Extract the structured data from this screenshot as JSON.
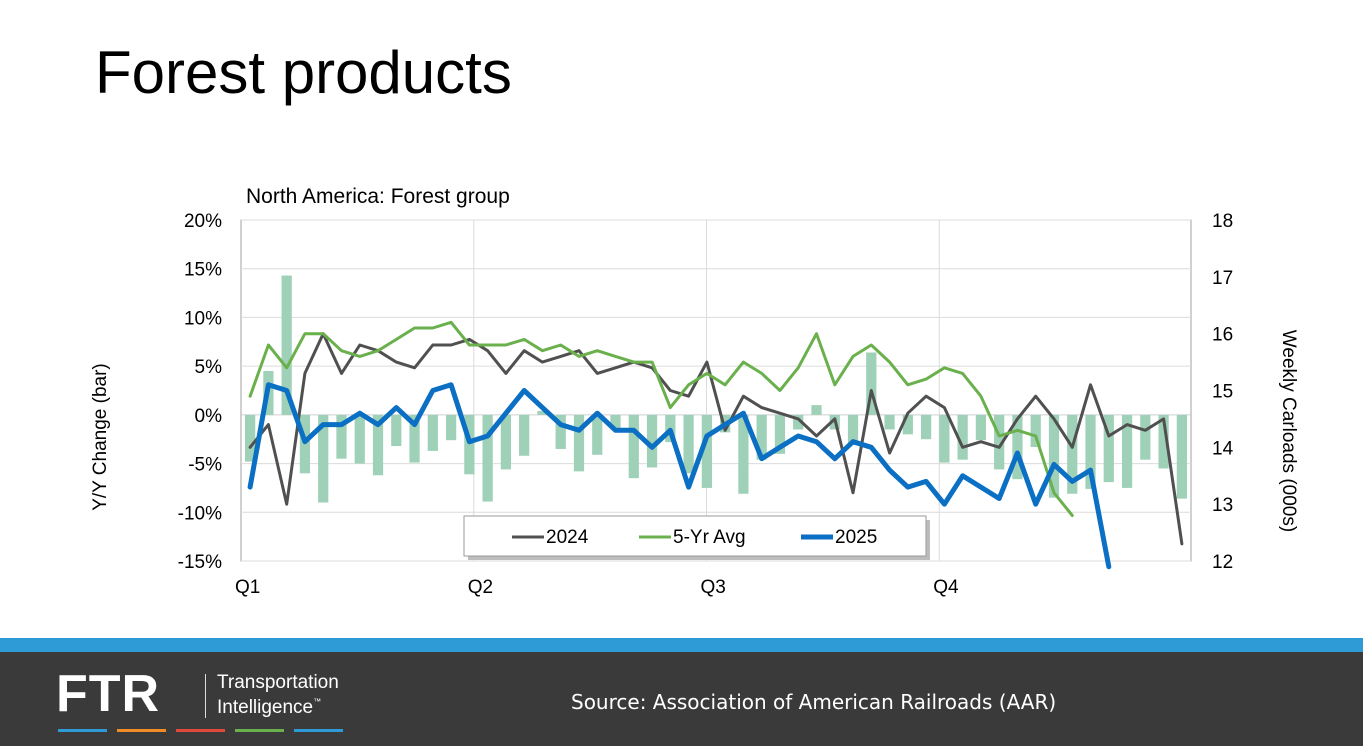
{
  "slide": {
    "title": "Forest products"
  },
  "chart_data": {
    "type": "bar+line",
    "title": "North America: Forest group",
    "ylabel_left": "Y/Y Change (bar)",
    "ylabel_right": "Weekly Carloads (000s)",
    "ylim_left": [
      -15,
      20
    ],
    "ylim_right": [
      12,
      18
    ],
    "yticks_left": [
      "-15%",
      "-10%",
      "-5%",
      "0%",
      "5%",
      "10%",
      "15%",
      "20%"
    ],
    "yticks_right": [
      "12",
      "13",
      "14",
      "15",
      "16",
      "17",
      "18"
    ],
    "quarters": [
      "Q1",
      "Q2",
      "Q3",
      "Q4"
    ],
    "weeks": 52,
    "legend_position": "bottom-center",
    "grid": true,
    "bars": {
      "name": "Y/Y Change",
      "color": "#9fd1b8",
      "values": [
        -4.8,
        4.5,
        14.3,
        -6,
        -9,
        -4.5,
        -5,
        -6.2,
        -3.2,
        -4.9,
        -3.7,
        -2.6,
        -6.1,
        -8.9,
        -5.6,
        -4.2,
        0.4,
        -3.5,
        -5.8,
        -4.1,
        -1.5,
        -6.5,
        -5.4,
        -2.8,
        -6,
        -7.5,
        -1.8,
        -8.1,
        -4.6,
        -4,
        -1.5,
        1,
        -1.5,
        -3.1,
        6.4,
        -1.5,
        -2,
        -2.5,
        -4.9,
        -4.6,
        -2.6,
        -5.6,
        -6.6,
        -3.3,
        -8.5,
        -8.1,
        -7.6,
        -6.9,
        -7.5,
        -4.6,
        -5.5,
        -8.6
      ]
    },
    "series": [
      {
        "name": "2024",
        "color": "#505050",
        "values": [
          14.0,
          14.4,
          13.0,
          15.3,
          16.0,
          15.3,
          15.8,
          15.7,
          15.5,
          15.4,
          15.8,
          15.8,
          15.9,
          15.7,
          15.3,
          15.7,
          15.5,
          15.6,
          15.7,
          15.3,
          15.4,
          15.5,
          15.4,
          15.0,
          14.9,
          15.5,
          14.3,
          14.9,
          14.7,
          14.6,
          14.5,
          14.2,
          14.5,
          13.2,
          15.0,
          13.9,
          14.6,
          14.9,
          14.7,
          14.0,
          14.1,
          14.0,
          14.5,
          14.9,
          14.5,
          14.0,
          15.1,
          14.2,
          14.4,
          14.3,
          14.5,
          12.3
        ]
      },
      {
        "name": "5-Yr Avg",
        "color": "#6ab04c",
        "values": [
          14.9,
          15.8,
          15.4,
          16.0,
          16.0,
          15.7,
          15.6,
          15.7,
          15.9,
          16.1,
          16.1,
          16.2,
          15.8,
          15.8,
          15.8,
          15.9,
          15.7,
          15.8,
          15.6,
          15.7,
          15.6,
          15.5,
          15.5,
          14.7,
          15.1,
          15.3,
          15.1,
          15.5,
          15.3,
          15.0,
          15.4,
          16.0,
          15.1,
          15.6,
          15.8,
          15.5,
          15.1,
          15.2,
          15.4,
          15.3,
          14.9,
          14.2,
          14.3,
          14.2,
          13.2,
          12.8
        ]
      },
      {
        "name": "2025",
        "color": "#0b6fc4",
        "values": [
          13.3,
          15.1,
          15.0,
          14.1,
          14.4,
          14.4,
          14.6,
          14.4,
          14.7,
          14.4,
          15.0,
          15.1,
          14.1,
          14.2,
          14.6,
          15.0,
          14.7,
          14.4,
          14.3,
          14.6,
          14.3,
          14.3,
          14.0,
          14.3,
          13.3,
          14.2,
          14.4,
          14.6,
          13.8,
          14.0,
          14.2,
          14.1,
          13.8,
          14.1,
          14.0,
          13.6,
          13.3,
          13.4,
          13.0,
          13.5,
          13.3,
          13.1,
          13.9,
          13.0,
          13.7,
          13.4,
          13.6,
          11.9
        ]
      }
    ]
  },
  "footer": {
    "logo_text": "FTR",
    "logo_line1": "Transportation",
    "logo_line2": "Intelligence",
    "logo_tm": "™",
    "source": "Source: Association of American Railroads (AAR)",
    "stripe_color": "#2f9bd6",
    "bg_color": "#3a3a3a",
    "logo_bar_colors": [
      "#2f9bd6",
      "#f28c28",
      "#e04a3a",
      "#6ab04c",
      "#2f9bd6"
    ]
  }
}
